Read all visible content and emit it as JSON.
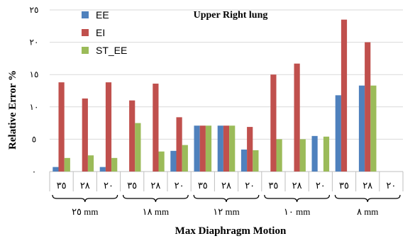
{
  "chart_data": {
    "type": "bar",
    "title": "Upper Right lung",
    "xlabel": "Max Diaphragm Motion",
    "ylabel": "Relative Error %",
    "ylim": [
      0,
      25
    ],
    "yticks": [
      "٠",
      "٥",
      "١٠",
      "١٥",
      "٢٠",
      "٢٥"
    ],
    "grid": "horizontal",
    "legend_position": "top-left",
    "categories": [
      "٣٥",
      "٢٨",
      "٢٠",
      "٣٥",
      "٢٨",
      "٢٠",
      "٣٥",
      "٢٨",
      "٢٠",
      "٣٥",
      "٢٨",
      "٢٠",
      "٣٥",
      "٢٨",
      "٢٠"
    ],
    "groups": [
      {
        "label": "٢٥ mm",
        "size": 3
      },
      {
        "label": "١٨ mm",
        "size": 3
      },
      {
        "label": "١٢ mm",
        "size": 3
      },
      {
        "label": "١٠ mm",
        "size": 3
      },
      {
        "label": "٨ mm",
        "size": 3
      }
    ],
    "series": [
      {
        "name": "EE",
        "color": "#4f81bd",
        "values": [
          0.7,
          0,
          0.7,
          0,
          0,
          3.2,
          7.1,
          7.1,
          3.4,
          0,
          0,
          5.5,
          11.8,
          13.3,
          0
        ]
      },
      {
        "name": "EI",
        "color": "#c0504d",
        "values": [
          13.8,
          11.3,
          13.8,
          11.0,
          13.6,
          8.4,
          7.1,
          7.1,
          6.9,
          15.0,
          16.7,
          0,
          23.5,
          20.0,
          0
        ]
      },
      {
        "name": "ST_EE",
        "color": "#9bbb59",
        "values": [
          2.1,
          2.5,
          2.1,
          7.5,
          3.1,
          4.1,
          7.1,
          7.1,
          3.3,
          5.0,
          5.0,
          5.4,
          0,
          13.3,
          0
        ]
      }
    ]
  }
}
